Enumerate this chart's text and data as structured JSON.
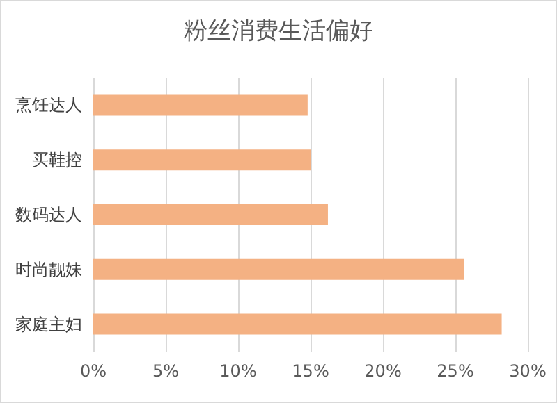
{
  "chart_data": {
    "type": "bar",
    "orientation": "horizontal",
    "title": "粉丝消费生活偏好",
    "categories": [
      "烹饪达人",
      "买鞋控",
      "数码达人",
      "时尚靓妹",
      "家庭主妇"
    ],
    "values": [
      14.8,
      15.0,
      16.2,
      25.6,
      28.2
    ],
    "color": "#f4b183",
    "xlim": [
      0,
      30
    ],
    "xticks": [
      {
        "value": 0,
        "label": "0%"
      },
      {
        "value": 5,
        "label": "5%"
      },
      {
        "value": 10,
        "label": "10%"
      },
      {
        "value": 15,
        "label": "15%"
      },
      {
        "value": 20,
        "label": "20%"
      },
      {
        "value": 25,
        "label": "25%"
      },
      {
        "value": 30,
        "label": "30%"
      }
    ],
    "grid": "x"
  }
}
